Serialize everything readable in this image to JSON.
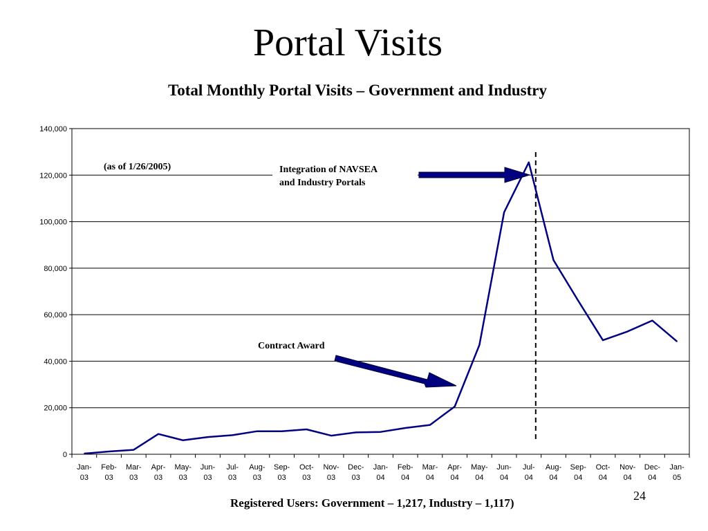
{
  "slide": {
    "title": "Portal Visits",
    "page_number": "24",
    "footer": "Registered Users: Government – 1,217,  Industry – 1,117)"
  },
  "chart_data": {
    "type": "line",
    "title": "Total Monthly Portal Visits – Government and Industry",
    "xlabel": "",
    "ylabel": "",
    "ylim": [
      0,
      140000
    ],
    "yticks": [
      0,
      20000,
      40000,
      60000,
      80000,
      100000,
      120000,
      140000
    ],
    "ytick_labels": [
      "0",
      "20,000",
      "40,000",
      "60,000",
      "80,000",
      "100,000",
      "120,000",
      "140,000"
    ],
    "grid": true,
    "legend": "none",
    "line_color": "#000080",
    "categories": [
      [
        "Jan-",
        "03"
      ],
      [
        "Feb-",
        "03"
      ],
      [
        "Mar-",
        "03"
      ],
      [
        "Apr-",
        "03"
      ],
      [
        "May-",
        "03"
      ],
      [
        "Jun-",
        "03"
      ],
      [
        "Jul-",
        "03"
      ],
      [
        "Aug-",
        "03"
      ],
      [
        "Sep-",
        "03"
      ],
      [
        "Oct-",
        "03"
      ],
      [
        "Nov-",
        "03"
      ],
      [
        "Dec-",
        "03"
      ],
      [
        "Jan-",
        "04"
      ],
      [
        "Feb-",
        "04"
      ],
      [
        "Mar-",
        "04"
      ],
      [
        "Apr-",
        "04"
      ],
      [
        "May-",
        "04"
      ],
      [
        "Jun-",
        "04"
      ],
      [
        "Jul-",
        "04"
      ],
      [
        "Aug-",
        "04"
      ],
      [
        "Sep-",
        "04"
      ],
      [
        "Oct-",
        "04"
      ],
      [
        "Nov-",
        "04"
      ],
      [
        "Dec-",
        "04"
      ],
      [
        "Jan-",
        "05"
      ]
    ],
    "series": [
      {
        "values": [
          300,
          1200,
          1900,
          8700,
          6000,
          7400,
          8200,
          9900,
          9900,
          10700,
          8000,
          9400,
          9600,
          11300,
          12600,
          20500,
          47000,
          104000,
          125500,
          83500,
          66000,
          49000,
          52800,
          57500,
          48500
        ]
      }
    ],
    "annotations": {
      "as_of": "(as of 1/26/2005)",
      "integration_line1": "Integration of NAVSEA",
      "integration_line2": "and Industry Portals",
      "contract_award": "Contract Award"
    },
    "reference_line_at_category": 18
  }
}
